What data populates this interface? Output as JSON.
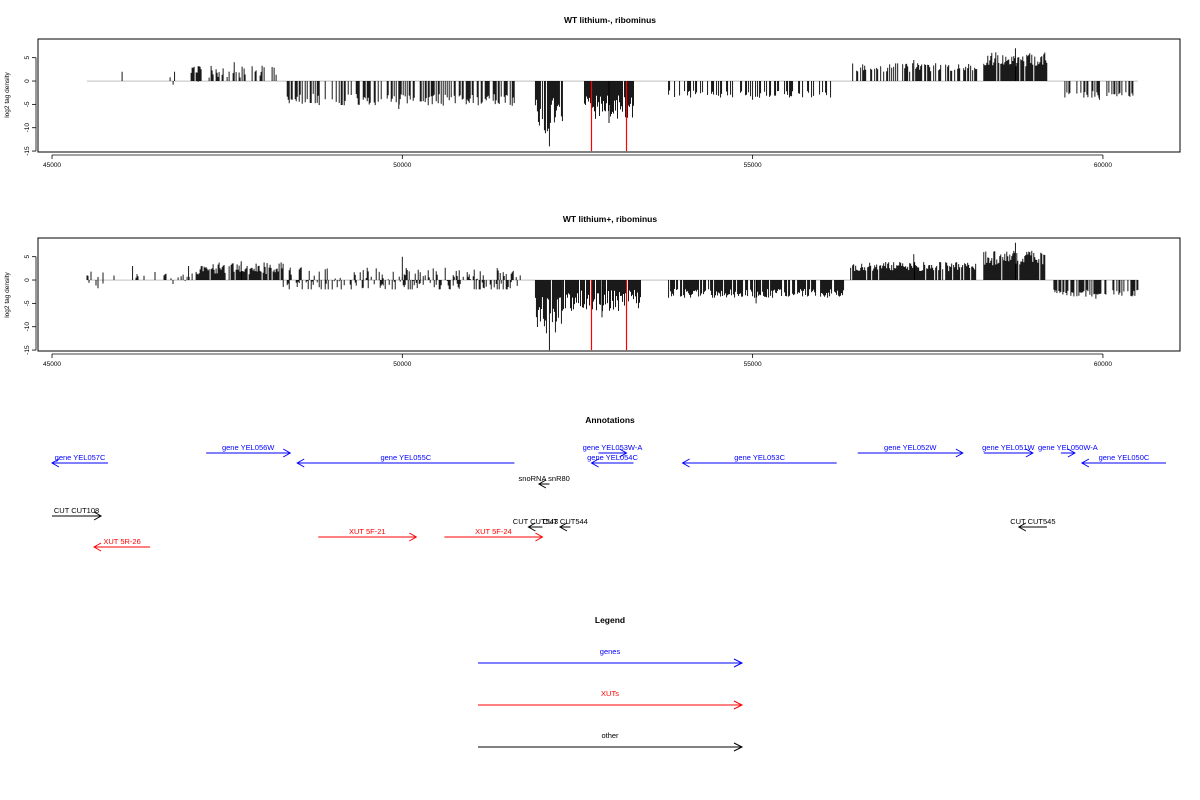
{
  "chart_data": [
    {
      "type": "bar",
      "title": "WT lithium-, ribominus",
      "ylabel": "log2 tag density",
      "xlim": [
        44800,
        61100
      ],
      "ylim": [
        -15.2,
        9
      ],
      "xticks": [
        45000,
        50000,
        55000,
        60000
      ],
      "yticks": [
        -15,
        -10,
        -5,
        0,
        5
      ],
      "highlight_color": "#ff0000",
      "highlights": [
        {
          "x": 52700,
          "y": -15
        },
        {
          "x": 53200,
          "y": -15
        }
      ],
      "segments": [
        {
          "start": 45500,
          "end": 46500,
          "mean": 0,
          "amp": 0,
          "pos_density": 0.05,
          "neg_density": 0.02,
          "sign": 1,
          "peak": 2
        },
        {
          "start": 46500,
          "end": 47000,
          "mean": 0.5,
          "amp": 1.5,
          "pos_density": 0.1,
          "neg_density": 0.1,
          "sign": 1,
          "peak": 2
        },
        {
          "start": 47000,
          "end": 48200,
          "mean": 1.5,
          "amp": 2,
          "pos_density": 0.35,
          "neg_density": 0.05,
          "sign": 1,
          "peak": 4
        },
        {
          "start": 48300,
          "end": 51600,
          "mean": -3.5,
          "amp": 2,
          "pos_density": 0.05,
          "neg_density": 0.45,
          "sign": -1,
          "peak": -6
        },
        {
          "start": 51900,
          "end": 52300,
          "mean": -6,
          "amp": 6,
          "pos_density": 0,
          "neg_density": 0.8,
          "sign": -1,
          "peak": -14
        },
        {
          "start": 52600,
          "end": 53300,
          "mean": -4.5,
          "amp": 4,
          "pos_density": 0,
          "neg_density": 0.9,
          "sign": -1,
          "peak": -9
        },
        {
          "start": 53800,
          "end": 56200,
          "mean": -2.5,
          "amp": 1.2,
          "pos_density": 0,
          "neg_density": 0.35,
          "sign": -1,
          "peak": -4
        },
        {
          "start": 56400,
          "end": 58200,
          "mean": 2.5,
          "amp": 1.5,
          "pos_density": 0.45,
          "neg_density": 0.05,
          "sign": 1,
          "peak": 4.5
        },
        {
          "start": 58300,
          "end": 59200,
          "mean": 4,
          "amp": 2.5,
          "pos_density": 0.9,
          "neg_density": 0,
          "sign": 1,
          "peak": 7
        },
        {
          "start": 59400,
          "end": 60500,
          "mean": -2.5,
          "amp": 1.2,
          "pos_density": 0,
          "neg_density": 0.4,
          "sign": -1,
          "peak": -4
        }
      ]
    },
    {
      "type": "bar",
      "title": "WT lithium+, ribominus",
      "ylabel": "log2 tag density",
      "xlim": [
        44800,
        61100
      ],
      "ylim": [
        -15.2,
        9
      ],
      "xticks": [
        45000,
        50000,
        55000,
        60000
      ],
      "yticks": [
        -15,
        -10,
        -5,
        0,
        5
      ],
      "highlight_color": "#ff0000",
      "highlights": [
        {
          "x": 52700,
          "y": -15
        },
        {
          "x": 53200,
          "y": -15
        }
      ],
      "segments": [
        {
          "start": 45500,
          "end": 46800,
          "mean": 0,
          "amp": 2,
          "pos_density": 0.15,
          "neg_density": 0.1,
          "sign": 1,
          "peak": 3
        },
        {
          "start": 46800,
          "end": 47100,
          "mean": 1,
          "amp": 2,
          "pos_density": 0.3,
          "neg_density": 0.2,
          "sign": 1,
          "peak": 3
        },
        {
          "start": 47100,
          "end": 48300,
          "mean": 2,
          "amp": 2,
          "pos_density": 0.9,
          "neg_density": 0.2,
          "sign": 1,
          "peak": 4
        },
        {
          "start": 48300,
          "end": 51700,
          "mean": 0,
          "amp": 3,
          "pos_density": 0.5,
          "neg_density": 0.6,
          "sign": 1,
          "peak": 5
        },
        {
          "start": 51900,
          "end": 52300,
          "mean": -6,
          "amp": 6,
          "pos_density": 0,
          "neg_density": 0.9,
          "sign": -1,
          "peak": -15
        },
        {
          "start": 52300,
          "end": 53400,
          "mean": -3.5,
          "amp": 3.5,
          "pos_density": 0.02,
          "neg_density": 0.9,
          "sign": -1,
          "peak": -8
        },
        {
          "start": 53800,
          "end": 56300,
          "mean": -2.5,
          "amp": 1.5,
          "pos_density": 0,
          "neg_density": 0.8,
          "sign": -1,
          "peak": -5
        },
        {
          "start": 56400,
          "end": 58200,
          "mean": 2.5,
          "amp": 1.5,
          "pos_density": 0.9,
          "neg_density": 0.05,
          "sign": 1,
          "peak": 5.5
        },
        {
          "start": 58300,
          "end": 59200,
          "mean": 4,
          "amp": 2.5,
          "pos_density": 0.95,
          "neg_density": 0,
          "sign": 1,
          "peak": 8
        },
        {
          "start": 59300,
          "end": 60500,
          "mean": -2.5,
          "amp": 1.2,
          "pos_density": 0.1,
          "neg_density": 0.6,
          "sign": -1,
          "peak": -4
        }
      ]
    }
  ],
  "annotations": {
    "title": "Annotations",
    "items": [
      {
        "label": "gene YEL057C",
        "start": 45800,
        "end": 45000,
        "color": "#0000ff",
        "row": 1,
        "label_pos": "mid"
      },
      {
        "label": "gene YEL056W",
        "start": 47200,
        "end": 48400,
        "color": "#0000ff",
        "row": 0,
        "label_pos": "mid"
      },
      {
        "label": "gene YEL055C",
        "start": 51600,
        "end": 48500,
        "color": "#0000ff",
        "row": 1,
        "label_pos": "mid"
      },
      {
        "label": "gene YEL053W-A",
        "start": 52800,
        "end": 53200,
        "color": "#0000ff",
        "row": 0,
        "label_pos": "mid"
      },
      {
        "label": "gene YEL054C",
        "start": 53300,
        "end": 52700,
        "color": "#0000ff",
        "row": 1,
        "label_pos": "mid"
      },
      {
        "label": "gene YEL053C",
        "start": 56200,
        "end": 54000,
        "color": "#0000ff",
        "row": 1,
        "label_pos": "mid"
      },
      {
        "label": "gene YEL052W",
        "start": 56500,
        "end": 58000,
        "color": "#0000ff",
        "row": 0,
        "label_pos": "mid"
      },
      {
        "label": "gene YEL051W",
        "start": 58300,
        "end": 59000,
        "color": "#0000ff",
        "row": 0,
        "label_pos": "mid"
      },
      {
        "label": "gene YEL050W-A",
        "start": 59400,
        "end": 59600,
        "color": "#0000ff",
        "row": 0,
        "label_pos": "mid"
      },
      {
        "label": "gene YEL050C",
        "start": 60900,
        "end": 59700,
        "color": "#0000ff",
        "row": 1,
        "label_pos": "mid"
      },
      {
        "label": "snoRNA snR80",
        "start": 52100,
        "end": 51950,
        "color": "#000000",
        "row": 2,
        "label_pos": "mid"
      },
      {
        "label": "CUT CUT108",
        "start": 45000,
        "end": 45700,
        "color": "#000000",
        "row": 3,
        "label_pos": "mid"
      },
      {
        "label": "CUT CUT543",
        "start": 52000,
        "end": 51800,
        "color": "#000000",
        "row": 4,
        "label_pos": "mid"
      },
      {
        "label": "CUT CUT544",
        "start": 52400,
        "end": 52250,
        "color": "#000000",
        "row": 4,
        "label_pos": "mid"
      },
      {
        "label": "CUT CUT545",
        "start": 59200,
        "end": 58800,
        "color": "#000000",
        "row": 4,
        "label_pos": "mid"
      },
      {
        "label": "XUT 5F-21",
        "start": 48800,
        "end": 50200,
        "color": "#ff0000",
        "row": 5,
        "label_pos": "mid"
      },
      {
        "label": "XUT 5F-24",
        "start": 50600,
        "end": 52000,
        "color": "#ff0000",
        "row": 5,
        "label_pos": "mid"
      },
      {
        "label": "XUT 5R-26",
        "start": 46400,
        "end": 45600,
        "color": "#ff0000",
        "row": 6,
        "label_pos": "mid"
      }
    ]
  },
  "legend": {
    "title": "Legend",
    "items": [
      {
        "label": "genes",
        "color": "#0000ff"
      },
      {
        "label": "XUTs",
        "color": "#ff0000"
      },
      {
        "label": "other",
        "color": "#000000"
      }
    ]
  }
}
